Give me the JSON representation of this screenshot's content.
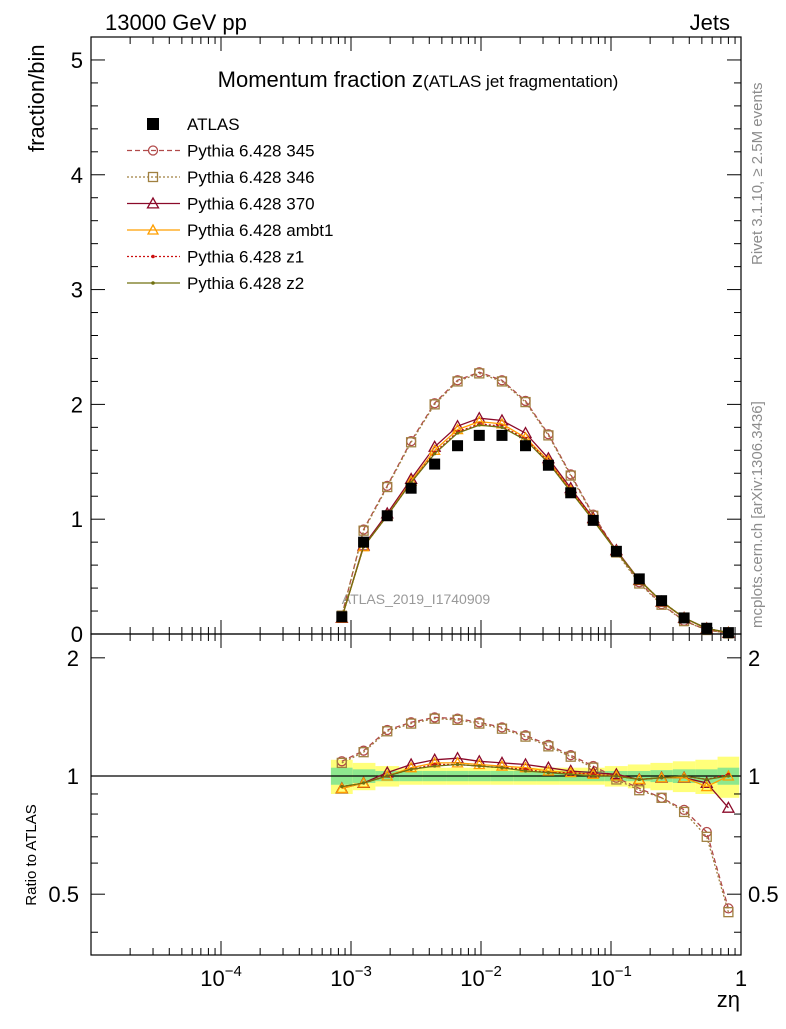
{
  "header": {
    "left": "13000 GeV pp",
    "right": "Jets"
  },
  "side_labels": {
    "rivet": "Rivet 3.1.10, ≥ 2.5M events",
    "mcplots": "mcplots.cern.ch [arXiv:1306.3436]"
  },
  "watermark": "ATLAS_2019_I1740909",
  "colors": {
    "atlas": "#000000",
    "p345": "#b14a4a",
    "p346": "#a08040",
    "p370": "#8b0a2a",
    "ambt1": "#ff9f00",
    "z1": "#cc1010",
    "z2": "#707010"
  },
  "chart_data": [
    {
      "type": "line",
      "title": "Momentum fraction z",
      "subtitle": "(ATLAS jet fragmentation)",
      "ylabel": "fraction/bin",
      "xscale": "log",
      "xlim": [
        1e-05,
        1
      ],
      "ylim": [
        0,
        5.2
      ],
      "yticks": [
        "0",
        "1",
        "2",
        "3",
        "4",
        "5"
      ],
      "x": [
        0.00085,
        0.00125,
        0.0019,
        0.0029,
        0.0044,
        0.0066,
        0.0097,
        0.0145,
        0.022,
        0.033,
        0.049,
        0.073,
        0.11,
        0.165,
        0.245,
        0.365,
        0.545,
        0.8
      ],
      "series": [
        {
          "name": "ATLAS",
          "values": [
            0.15,
            0.8,
            1.03,
            1.27,
            1.48,
            1.64,
            1.73,
            1.73,
            1.64,
            1.47,
            1.23,
            0.99,
            0.72,
            0.48,
            0.29,
            0.14,
            0.05,
            0.012
          ]
        },
        {
          "name": "Pythia 6.428 345",
          "values": [
            0.16,
            0.91,
            1.29,
            1.68,
            2.01,
            2.21,
            2.28,
            2.21,
            2.03,
            1.74,
            1.39,
            1.04,
            0.72,
            0.45,
            0.26,
            0.115,
            0.036,
            0.005
          ]
        },
        {
          "name": "Pythia 6.428 346",
          "values": [
            0.16,
            0.9,
            1.28,
            1.67,
            2.0,
            2.2,
            2.27,
            2.2,
            2.02,
            1.73,
            1.38,
            1.03,
            0.71,
            0.44,
            0.255,
            0.112,
            0.035,
            0.005
          ]
        },
        {
          "name": "Pythia 6.428 370",
          "values": [
            0.14,
            0.77,
            1.05,
            1.35,
            1.63,
            1.81,
            1.88,
            1.86,
            1.75,
            1.53,
            1.27,
            1.01,
            0.73,
            0.47,
            0.28,
            0.14,
            0.048,
            0.01
          ]
        },
        {
          "name": "Pythia 6.428 ambt1",
          "values": [
            0.14,
            0.76,
            1.03,
            1.33,
            1.6,
            1.78,
            1.85,
            1.83,
            1.71,
            1.51,
            1.25,
            1.0,
            0.72,
            0.47,
            0.28,
            0.14,
            0.047,
            0.012
          ]
        },
        {
          "name": "Pythia 6.428 z1",
          "values": [
            0.14,
            0.76,
            1.03,
            1.32,
            1.58,
            1.76,
            1.83,
            1.81,
            1.7,
            1.5,
            1.25,
            1.0,
            0.72,
            0.47,
            0.285,
            0.14,
            0.049,
            0.012
          ]
        },
        {
          "name": "Pythia 6.428 z2",
          "values": [
            0.14,
            0.76,
            1.03,
            1.32,
            1.57,
            1.75,
            1.82,
            1.8,
            1.69,
            1.49,
            1.24,
            0.99,
            0.72,
            0.47,
            0.285,
            0.14,
            0.049,
            0.012
          ]
        }
      ]
    },
    {
      "type": "line",
      "ylabel": "Ratio to ATLAS",
      "xlabel": "zη",
      "xscale": "log",
      "xlim": [
        1e-05,
        1
      ],
      "ylim": [
        0.35,
        2.3
      ],
      "xticks": [
        "10",
        "10",
        "10",
        "10",
        "1"
      ],
      "xtick_exponents": [
        "−4",
        "−3",
        "−2",
        "−1",
        ""
      ],
      "yticks": [
        "0.5",
        "1",
        "2"
      ],
      "x": [
        0.00085,
        0.00125,
        0.0019,
        0.0029,
        0.0044,
        0.0066,
        0.0097,
        0.0145,
        0.022,
        0.033,
        0.049,
        0.073,
        0.11,
        0.165,
        0.245,
        0.365,
        0.545,
        0.8
      ],
      "band_stat_half_width": [
        0.05,
        0.04,
        0.03,
        0.03,
        0.03,
        0.03,
        0.03,
        0.03,
        0.03,
        0.03,
        0.03,
        0.03,
        0.03,
        0.03,
        0.035,
        0.04,
        0.04,
        0.05
      ],
      "band_total_half_width": [
        0.1,
        0.08,
        0.06,
        0.05,
        0.05,
        0.05,
        0.05,
        0.05,
        0.05,
        0.05,
        0.05,
        0.05,
        0.06,
        0.07,
        0.08,
        0.09,
        0.1,
        0.12
      ],
      "series": [
        {
          "name": "Pythia 6.428 345",
          "values": [
            1.09,
            1.16,
            1.31,
            1.37,
            1.41,
            1.4,
            1.37,
            1.33,
            1.27,
            1.2,
            1.13,
            1.06,
            0.99,
            0.93,
            0.88,
            0.82,
            0.72,
            0.46
          ]
        },
        {
          "name": "Pythia 6.428 346",
          "values": [
            1.08,
            1.15,
            1.3,
            1.36,
            1.4,
            1.39,
            1.36,
            1.32,
            1.26,
            1.19,
            1.12,
            1.05,
            0.98,
            0.92,
            0.88,
            0.81,
            0.7,
            0.45
          ]
        },
        {
          "name": "Pythia 6.428 370",
          "values": [
            0.93,
            0.96,
            1.02,
            1.07,
            1.1,
            1.11,
            1.09,
            1.08,
            1.07,
            1.05,
            1.03,
            1.02,
            1.01,
            0.98,
            0.99,
            0.99,
            0.96,
            0.83
          ]
        },
        {
          "name": "Pythia 6.428 ambt1",
          "values": [
            0.93,
            0.96,
            1.0,
            1.05,
            1.08,
            1.08,
            1.07,
            1.06,
            1.05,
            1.03,
            1.02,
            1.01,
            1.0,
            0.98,
            0.99,
            0.99,
            0.94,
            1.0
          ]
        },
        {
          "name": "Pythia 6.428 z1",
          "values": [
            0.94,
            0.96,
            1.0,
            1.04,
            1.07,
            1.07,
            1.06,
            1.05,
            1.04,
            1.02,
            1.02,
            1.01,
            1.0,
            0.98,
            0.99,
            1.0,
            0.98,
            1.01
          ]
        },
        {
          "name": "Pythia 6.428 z2",
          "values": [
            0.94,
            0.96,
            1.0,
            1.04,
            1.06,
            1.07,
            1.06,
            1.05,
            1.03,
            1.02,
            1.01,
            1.0,
            1.0,
            0.98,
            0.99,
            1.0,
            0.98,
            1.0
          ]
        }
      ]
    }
  ]
}
